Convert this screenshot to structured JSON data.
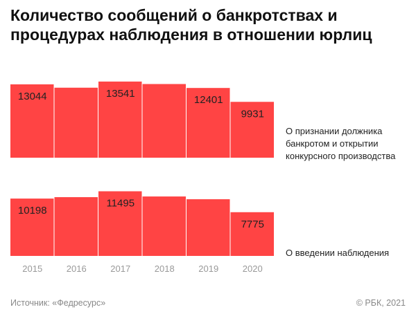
{
  "title": "Количество сообщений о банкротствах и процедурах наблюдения в отношении юрлиц",
  "source": "Источник: «Федресурс»",
  "credit": "© РБК, 2021",
  "colors": {
    "bar": "#ff4444",
    "label": "#222222",
    "tick": "#999999"
  },
  "chart_data": [
    {
      "type": "bar",
      "title": "О признании должника банкротом и открытии конкурсного производства",
      "categories": [
        "2015",
        "2016",
        "2017",
        "2018",
        "2019",
        "2020"
      ],
      "values": [
        13044,
        12450,
        13541,
        13100,
        12401,
        9931
      ],
      "data_labels": [
        "13044",
        "",
        "13541",
        "",
        "12401",
        "9931"
      ]
    },
    {
      "type": "bar",
      "title": "О введении наблюдения",
      "categories": [
        "2015",
        "2016",
        "2017",
        "2018",
        "2019",
        "2020"
      ],
      "values": [
        10198,
        10450,
        11495,
        10570,
        10080,
        7775
      ],
      "data_labels": [
        "10198",
        "",
        "11495",
        "",
        "",
        "7775"
      ]
    }
  ]
}
